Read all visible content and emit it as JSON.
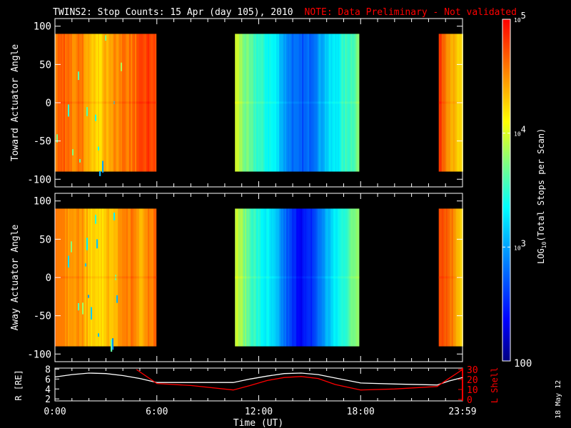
{
  "header": {
    "title": "TWINS2: Stop Counts: 15 Apr (day 105), 2010",
    "note": "NOTE: Data Preliminary - Not validated",
    "note_color": "#ff0000"
  },
  "footer": {
    "date_stamp": "18 May 12"
  },
  "chart_data": [
    {
      "type": "heatmap",
      "name": "toward",
      "ylabel": "Toward Actuator Angle",
      "ylim": [
        -110,
        110
      ],
      "yticks": [
        100,
        50,
        0,
        -50,
        -100
      ],
      "data_ylim": [
        -90,
        90
      ],
      "xlim_hours": [
        0,
        24
      ],
      "blocks": [
        {
          "start": 0.0,
          "end": 5.9,
          "t": [
            0,
            0.5,
            1,
            1.5,
            2,
            2.5,
            3,
            3.5,
            4,
            4.5,
            5,
            5.5,
            5.9
          ],
          "log_counts": [
            4.6,
            4.7,
            4.5,
            4.6,
            4.3,
            4.2,
            4.4,
            4.5,
            4.6,
            4.6,
            4.7,
            4.8,
            4.7
          ]
        },
        {
          "start": 10.6,
          "end": 17.9,
          "t": [
            10.6,
            11,
            11.5,
            12,
            12.5,
            13,
            13.5,
            14,
            14.5,
            15,
            15.5,
            16,
            16.5,
            17,
            17.5,
            17.9
          ],
          "log_counts": [
            4.0,
            3.8,
            3.6,
            3.5,
            3.4,
            3.3,
            3.0,
            2.8,
            2.7,
            2.8,
            3.0,
            3.2,
            3.3,
            3.5,
            3.6,
            3.8
          ]
        },
        {
          "start": 22.6,
          "end": 24.0,
          "t": [
            22.6,
            23,
            23.5,
            24
          ],
          "log_counts": [
            4.8,
            4.6,
            4.3,
            4.1
          ]
        }
      ]
    },
    {
      "type": "heatmap",
      "name": "away",
      "ylabel": "Away Actuator Angle",
      "ylim": [
        -110,
        110
      ],
      "yticks": [
        100,
        50,
        0,
        -50,
        -100
      ],
      "data_ylim": [
        -90,
        90
      ],
      "xlim_hours": [
        0,
        24
      ],
      "blocks": [
        {
          "start": 0.0,
          "end": 5.9,
          "t": [
            0,
            0.5,
            1,
            1.5,
            2,
            2.5,
            3,
            3.5,
            4,
            4.5,
            5,
            5.5,
            5.9
          ],
          "log_counts": [
            4.6,
            4.5,
            4.4,
            4.5,
            4.3,
            4.2,
            4.3,
            4.4,
            4.5,
            4.6,
            4.4,
            4.6,
            4.6
          ]
        },
        {
          "start": 10.6,
          "end": 17.9,
          "t": [
            10.6,
            11,
            11.5,
            12,
            12.5,
            13,
            13.5,
            14,
            14.5,
            15,
            15.5,
            16,
            16.5,
            17,
            17.5,
            17.9
          ],
          "log_counts": [
            4.0,
            3.8,
            3.6,
            3.4,
            3.3,
            3.1,
            2.8,
            2.5,
            2.4,
            2.5,
            2.8,
            3.1,
            3.3,
            3.5,
            3.7,
            3.9
          ]
        },
        {
          "start": 22.6,
          "end": 24.0,
          "t": [
            22.6,
            23,
            23.5,
            24
          ],
          "log_counts": [
            4.8,
            4.7,
            4.5,
            4.2
          ]
        }
      ]
    },
    {
      "type": "line",
      "name": "orbit",
      "ylabel_left": "R [RE]",
      "ylabel_right": "L Shell",
      "xlabel": "Time (UT)",
      "xticks": [
        "0:00",
        "6:00",
        "12:00",
        "18:00",
        "23:59"
      ],
      "xtick_hours": [
        0,
        6,
        12,
        18,
        24
      ],
      "yticks_left": [
        8,
        6,
        4,
        2
      ],
      "ylim_left": [
        1.6,
        8.2
      ],
      "yticks_right": [
        30,
        20,
        10,
        0
      ],
      "ylim_right": [
        0,
        30
      ],
      "series": [
        {
          "name": "R",
          "color": "#ffffff",
          "x": [
            0,
            1,
            2,
            3,
            4,
            5,
            6,
            8,
            10.5,
            11.5,
            12.5,
            13.5,
            14.5,
            15.5,
            16.5,
            18,
            20,
            22.5,
            23.2,
            24
          ],
          "y": [
            6.4,
            6.9,
            7.2,
            7.1,
            6.7,
            6.1,
            5.3,
            5.3,
            5.3,
            6.0,
            6.6,
            7.1,
            7.2,
            6.9,
            6.2,
            5.2,
            5.0,
            4.8,
            5.6,
            6.3
          ]
        },
        {
          "name": "L Shell",
          "color": "#ff0000",
          "x": [
            4.8,
            6,
            8,
            10.5,
            11.5,
            12.5,
            13.5,
            14.5,
            15.5,
            16.5,
            18,
            20,
            22.5,
            23.2,
            24
          ],
          "y": [
            30,
            16,
            14,
            9.5,
            14,
            19,
            22,
            23,
            21,
            15,
            9.5,
            10.5,
            13,
            21,
            30
          ]
        }
      ]
    },
    {
      "type": "colorbar",
      "label": "LOG10(Total Stops per Scan)",
      "label_base": "LOG",
      "label_sub": "10",
      "label_rest": "(Total Stops per Scan)",
      "range_log": [
        2,
        5
      ],
      "ticks": [
        {
          "value": 5,
          "base": "10",
          "exp": "5"
        },
        {
          "value": 4,
          "base": "10",
          "exp": "4"
        },
        {
          "value": 3,
          "base": "10",
          "exp": "3"
        },
        {
          "value": 2,
          "base": "100",
          "exp": ""
        }
      ]
    }
  ]
}
